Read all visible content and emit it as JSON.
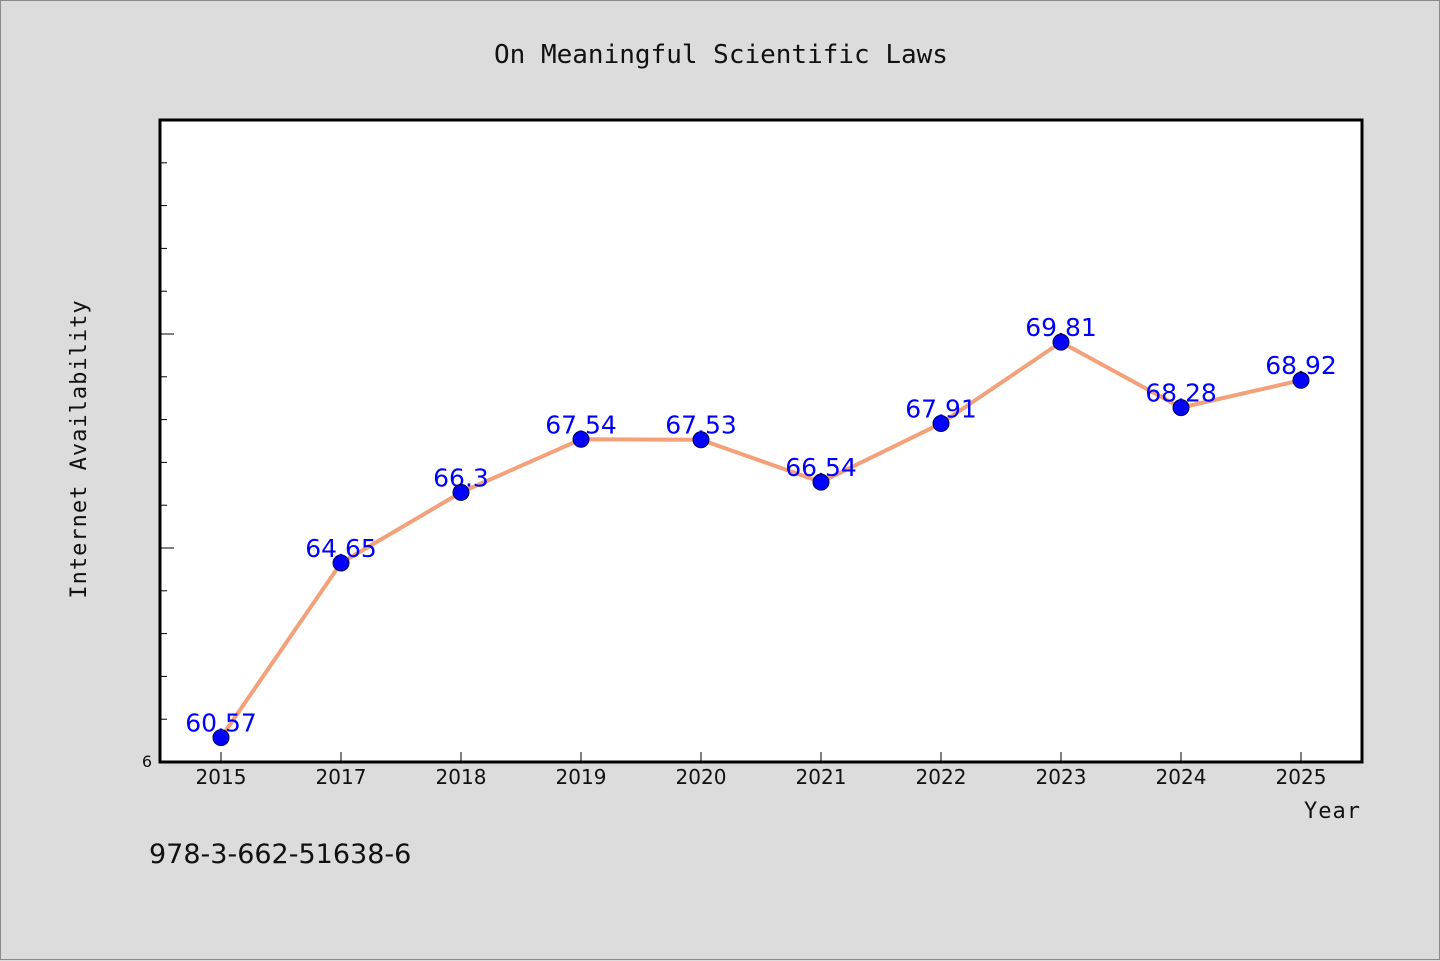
{
  "chart_data": {
    "type": "line",
    "title": "On Meaningful Scientific Laws",
    "xlabel": "Year",
    "ylabel": "Internet Availability",
    "categories": [
      "2015",
      "2017",
      "2018",
      "2019",
      "2020",
      "2021",
      "2022",
      "2023",
      "2024",
      "2025"
    ],
    "series": [
      {
        "values": [
          60.57,
          64.65,
          66.3,
          67.54,
          67.53,
          66.54,
          67.91,
          69.81,
          68.28,
          68.92
        ],
        "data_labels": [
          "60.57",
          "64.65",
          "66.3",
          "67.54",
          "67.53",
          "66.54",
          "67.91",
          "69.81",
          "68.28",
          "68.92"
        ],
        "line_color": "#f4a07a",
        "marker_color": "#0000ff"
      }
    ],
    "ylim": [
      60,
      75
    ],
    "y_tick_label": "6",
    "grid": false,
    "label_color": "#0000ff"
  },
  "footer": {
    "isbn": "978-3-662-51638-6"
  }
}
